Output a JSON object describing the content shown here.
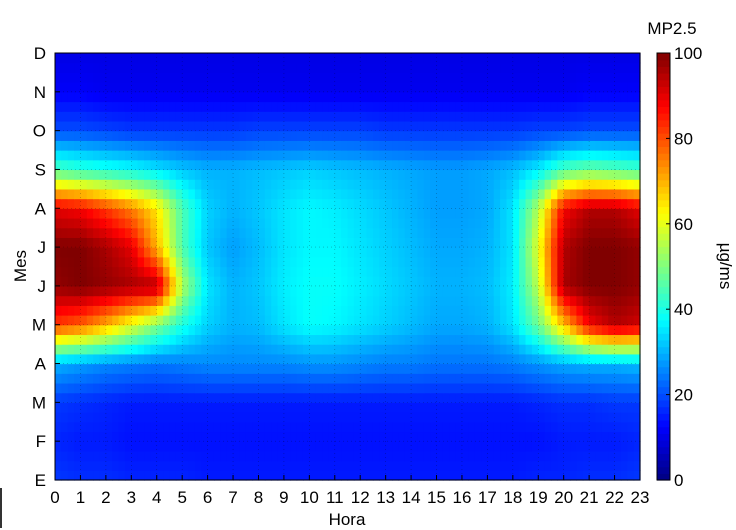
{
  "chart_data": {
    "type": "heatmap",
    "title": "MP2.5",
    "xlabel": "Hora",
    "ylabel": "Mes",
    "colorbar_label": "µg/ms",
    "x": [
      0,
      1,
      2,
      3,
      4,
      5,
      6,
      7,
      8,
      9,
      10,
      11,
      12,
      13,
      14,
      15,
      16,
      17,
      18,
      19,
      20,
      21,
      22,
      23
    ],
    "x_tick_labels": [
      "0",
      "1",
      "2",
      "3",
      "4",
      "5",
      "6",
      "7",
      "8",
      "9",
      "10",
      "11",
      "12",
      "13",
      "14",
      "15",
      "16",
      "17",
      "18",
      "19",
      "20",
      "21",
      "22",
      "23"
    ],
    "y_tick_labels": [
      "E",
      "F",
      "M",
      "A",
      "M",
      "J",
      "J",
      "A",
      "S",
      "O",
      "N",
      "D"
    ],
    "xlim": [
      0,
      23
    ],
    "ylim": [
      1,
      12
    ],
    "clim": [
      0,
      100
    ],
    "colorbar_ticks": [
      0,
      20,
      40,
      60,
      80,
      100
    ],
    "colormap": "jet",
    "grid": true,
    "z": [
      [
        18,
        17,
        17,
        16,
        16,
        16,
        15,
        15,
        15,
        15,
        15,
        15,
        15,
        15,
        15,
        15,
        15,
        15,
        15,
        16,
        16,
        17,
        17,
        18
      ],
      [
        16,
        15,
        15,
        14,
        14,
        14,
        14,
        14,
        14,
        14,
        14,
        14,
        14,
        14,
        14,
        14,
        14,
        14,
        14,
        14,
        15,
        15,
        15,
        16
      ],
      [
        18,
        17,
        16,
        15,
        15,
        15,
        15,
        15,
        15,
        15,
        15,
        15,
        15,
        15,
        15,
        15,
        15,
        15,
        15,
        16,
        17,
        17,
        18,
        18
      ],
      [
        30,
        28,
        26,
        25,
        24,
        25,
        26,
        26,
        26,
        26,
        27,
        27,
        26,
        25,
        25,
        24,
        24,
        24,
        25,
        27,
        29,
        30,
        30,
        31
      ],
      [
        82,
        78,
        70,
        60,
        50,
        40,
        33,
        30,
        31,
        35,
        38,
        37,
        35,
        33,
        31,
        29,
        29,
        30,
        35,
        48,
        68,
        88,
        95,
        92
      ],
      [
        98,
        100,
        98,
        96,
        95,
        55,
        35,
        30,
        32,
        36,
        38,
        38,
        36,
        34,
        32,
        30,
        30,
        31,
        36,
        56,
        96,
        100,
        100,
        98
      ],
      [
        100,
        100,
        96,
        90,
        70,
        45,
        32,
        28,
        31,
        35,
        37,
        37,
        35,
        33,
        31,
        29,
        29,
        30,
        35,
        60,
        95,
        100,
        100,
        98
      ],
      [
        90,
        88,
        82,
        75,
        65,
        45,
        33,
        30,
        32,
        35,
        37,
        36,
        34,
        32,
        30,
        28,
        28,
        29,
        35,
        55,
        88,
        95,
        95,
        90
      ],
      [
        45,
        42,
        40,
        38,
        35,
        32,
        30,
        30,
        31,
        32,
        33,
        32,
        31,
        30,
        29,
        28,
        28,
        29,
        31,
        36,
        45,
        48,
        46,
        44
      ],
      [
        20,
        20,
        19,
        18,
        18,
        18,
        18,
        18,
        19,
        19,
        19,
        19,
        19,
        18,
        18,
        18,
        18,
        18,
        18,
        19,
        19,
        20,
        20,
        20
      ],
      [
        12,
        12,
        11,
        11,
        11,
        11,
        11,
        11,
        11,
        11,
        11,
        11,
        11,
        11,
        11,
        11,
        11,
        11,
        11,
        11,
        11,
        12,
        12,
        12
      ],
      [
        10,
        10,
        10,
        10,
        10,
        10,
        10,
        10,
        10,
        10,
        10,
        10,
        10,
        10,
        10,
        10,
        10,
        10,
        10,
        10,
        10,
        10,
        10,
        10
      ]
    ]
  }
}
